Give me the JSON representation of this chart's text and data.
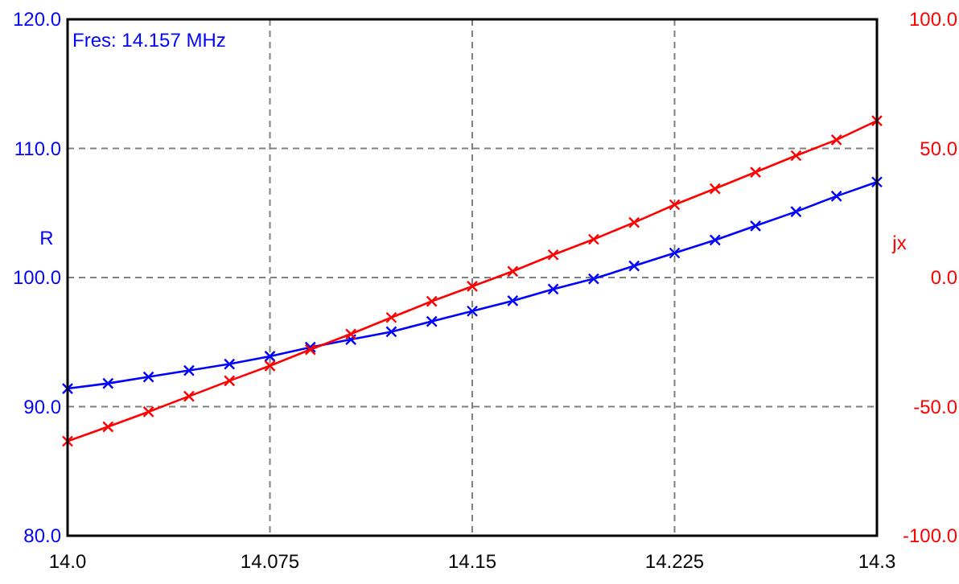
{
  "chart_data": {
    "type": "line",
    "x": [
      14.0,
      14.015,
      14.03,
      14.045,
      14.06,
      14.075,
      14.09,
      14.105,
      14.12,
      14.135,
      14.15,
      14.165,
      14.18,
      14.195,
      14.21,
      14.225,
      14.24,
      14.255,
      14.27,
      14.285,
      14.3
    ],
    "series": [
      {
        "color": "#0000ff",
        "values": [
          91.4,
          91.8,
          92.3,
          92.8,
          93.3,
          93.9,
          94.6,
          95.2,
          95.8,
          96.6,
          97.4,
          98.2,
          99.1,
          99.9,
          100.9,
          101.9,
          102.9,
          104.0,
          105.1,
          106.3,
          107.4
        ]
      },
      {
        "color": "#ff0000",
        "axis": "y2",
        "values": [
          -63.4,
          -57.8,
          -52.0,
          -46.0,
          -40.0,
          -34.2,
          -27.9,
          -21.9,
          -15.5,
          -9.2,
          -3.4,
          2.4,
          8.8,
          14.8,
          21.3,
          28.2,
          34.4,
          40.8,
          47.2,
          53.3,
          60.7
        ]
      }
    ],
    "xlim": [
      14.0,
      14.3
    ],
    "xticks": [
      {
        "value": 14.0,
        "label": "14.0"
      },
      14.075,
      14.15,
      14.225,
      {
        "value": 14.3,
        "label": "14.3"
      }
    ],
    "ylim": [
      80,
      120
    ],
    "yticks": [
      {
        "value": 80,
        "label": "80.0"
      },
      {
        "value": 90,
        "label": "90.0"
      },
      {
        "value": 100,
        "label": "100.0"
      },
      {
        "value": 110,
        "label": "110.0"
      },
      {
        "value": 120,
        "label": "120.0"
      }
    ],
    "y2lim": [
      -100,
      100
    ],
    "y2ticks": [
      {
        "value": -100,
        "label": "-100.0"
      },
      {
        "value": -50,
        "label": "-50.0"
      },
      {
        "value": 0,
        "label": "0.0"
      },
      {
        "value": 50,
        "label": "50.0"
      },
      {
        "value": 100,
        "label": "100.0"
      }
    ],
    "ylabel": "R",
    "y2label": "jx",
    "annotations": [
      "Fres: 14.157 MHz"
    ],
    "grid": true,
    "marker": "cross",
    "line_style": "solid"
  }
}
